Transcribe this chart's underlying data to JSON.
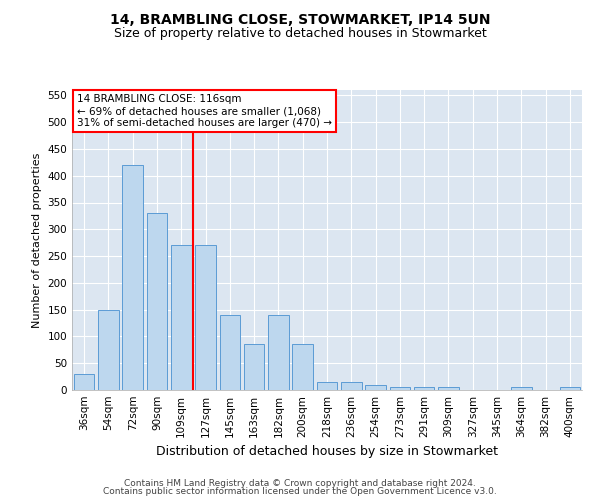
{
  "title": "14, BRAMBLING CLOSE, STOWMARKET, IP14 5UN",
  "subtitle": "Size of property relative to detached houses in Stowmarket",
  "xlabel": "Distribution of detached houses by size in Stowmarket",
  "ylabel": "Number of detached properties",
  "categories": [
    "36sqm",
    "54sqm",
    "72sqm",
    "90sqm",
    "109sqm",
    "127sqm",
    "145sqm",
    "163sqm",
    "182sqm",
    "200sqm",
    "218sqm",
    "236sqm",
    "254sqm",
    "273sqm",
    "291sqm",
    "309sqm",
    "327sqm",
    "345sqm",
    "364sqm",
    "382sqm",
    "400sqm"
  ],
  "values": [
    30,
    150,
    420,
    330,
    270,
    270,
    140,
    85,
    140,
    85,
    15,
    15,
    10,
    5,
    5,
    5,
    0,
    0,
    5,
    0,
    5
  ],
  "bar_color": "#bdd7ee",
  "bar_edge_color": "#5b9bd5",
  "background_color": "#dce6f1",
  "grid_color": "#ffffff",
  "vline_pos": 4.5,
  "vline_color": "red",
  "annotation_text": "14 BRAMBLING CLOSE: 116sqm\n← 69% of detached houses are smaller (1,068)\n31% of semi-detached houses are larger (470) →",
  "annotation_box_color": "white",
  "annotation_box_edge": "red",
  "ylim": [
    0,
    560
  ],
  "yticks": [
    0,
    50,
    100,
    150,
    200,
    250,
    300,
    350,
    400,
    450,
    500,
    550
  ],
  "footer1": "Contains HM Land Registry data © Crown copyright and database right 2024.",
  "footer2": "Contains public sector information licensed under the Open Government Licence v3.0.",
  "title_fontsize": 10,
  "subtitle_fontsize": 9,
  "ylabel_fontsize": 8,
  "xlabel_fontsize": 9,
  "tick_fontsize": 7.5,
  "footer_fontsize": 6.5
}
